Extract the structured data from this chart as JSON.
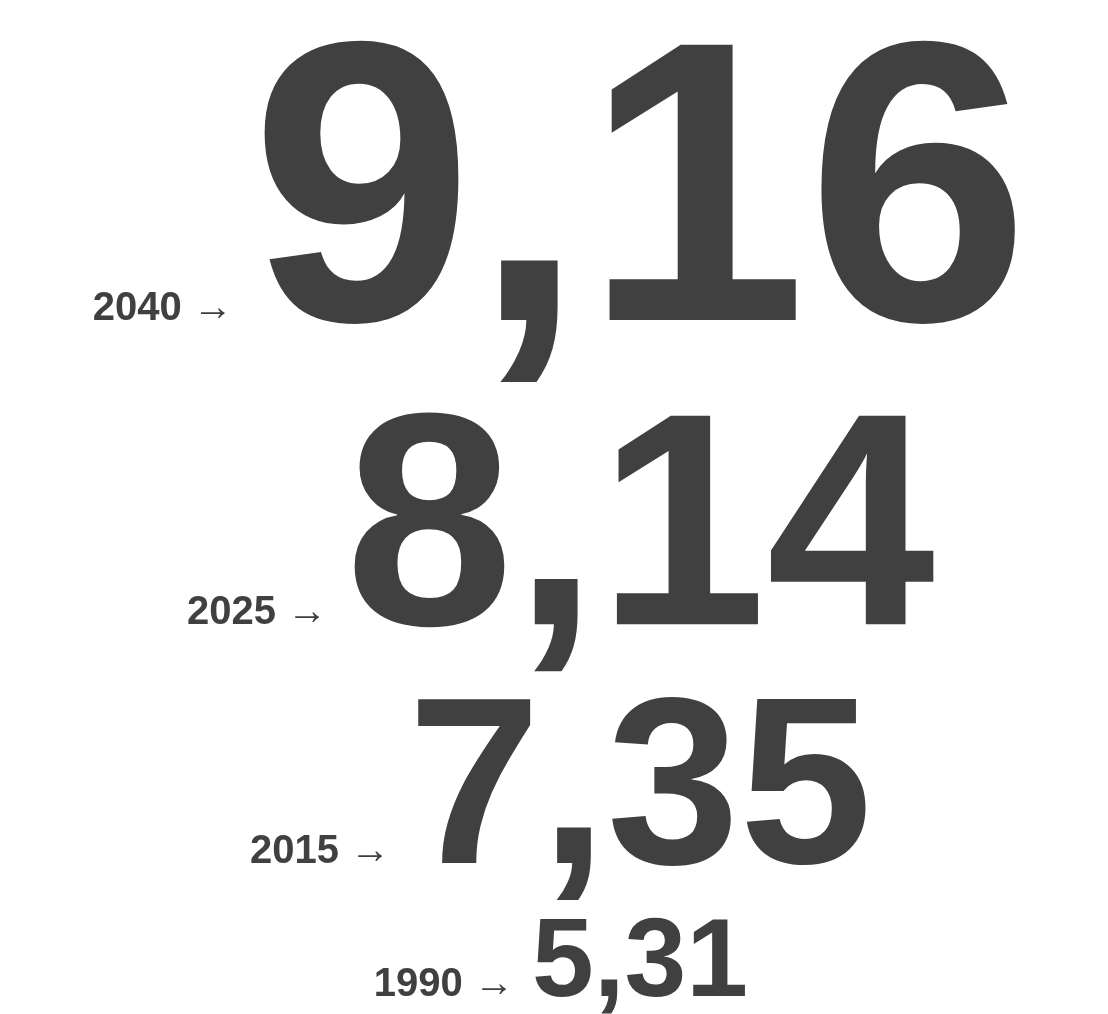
{
  "chart_data": {
    "type": "other",
    "categories": [
      "2040 →",
      "2025 →",
      "2015 →",
      "1990 →"
    ],
    "values": [
      9.16,
      8.14,
      7.35,
      5.31
    ],
    "value_labels": [
      "9,16",
      "8,14",
      "7,35",
      "5,31"
    ],
    "color": "#404040"
  }
}
